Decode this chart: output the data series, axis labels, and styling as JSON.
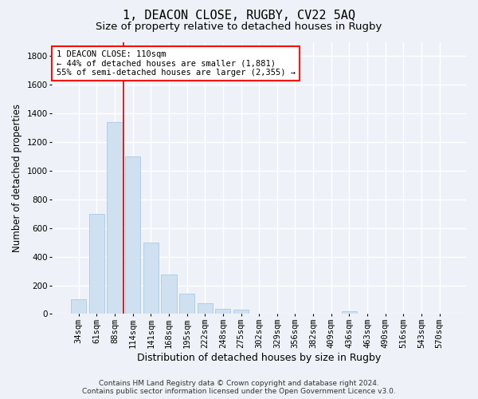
{
  "title": "1, DEACON CLOSE, RUGBY, CV22 5AQ",
  "subtitle": "Size of property relative to detached houses in Rugby",
  "xlabel": "Distribution of detached houses by size in Rugby",
  "ylabel": "Number of detached properties",
  "categories": [
    "34sqm",
    "61sqm",
    "88sqm",
    "114sqm",
    "141sqm",
    "168sqm",
    "195sqm",
    "222sqm",
    "248sqm",
    "275sqm",
    "302sqm",
    "329sqm",
    "356sqm",
    "382sqm",
    "409sqm",
    "436sqm",
    "463sqm",
    "490sqm",
    "516sqm",
    "543sqm",
    "570sqm"
  ],
  "values": [
    100,
    700,
    1340,
    1100,
    500,
    275,
    140,
    75,
    35,
    30,
    0,
    0,
    0,
    0,
    0,
    20,
    0,
    0,
    0,
    0,
    0
  ],
  "bar_color": "#cfe0f0",
  "bar_edge_color": "#aac8e8",
  "vline_color": "red",
  "vline_x_index": 2.5,
  "annotation_text": "1 DEACON CLOSE: 110sqm\n← 44% of detached houses are smaller (1,881)\n55% of semi-detached houses are larger (2,355) →",
  "annotation_box_color": "white",
  "annotation_box_edge_color": "red",
  "ylim": [
    0,
    1900
  ],
  "yticks": [
    0,
    200,
    400,
    600,
    800,
    1000,
    1200,
    1400,
    1600,
    1800
  ],
  "background_color": "#eef2f8",
  "grid_color": "white",
  "footer_line1": "Contains HM Land Registry data © Crown copyright and database right 2024.",
  "footer_line2": "Contains public sector information licensed under the Open Government Licence v3.0.",
  "title_fontsize": 11,
  "subtitle_fontsize": 9.5,
  "xlabel_fontsize": 9,
  "ylabel_fontsize": 8.5,
  "tick_fontsize": 7.5,
  "annotation_fontsize": 7.5,
  "footer_fontsize": 6.5
}
